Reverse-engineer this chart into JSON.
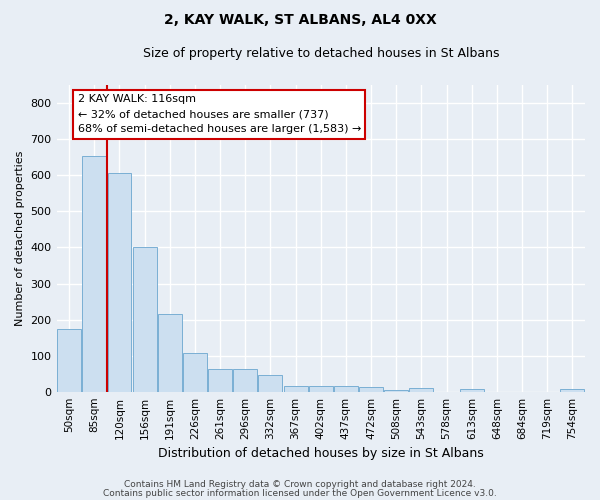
{
  "title1": "2, KAY WALK, ST ALBANS, AL4 0XX",
  "title2": "Size of property relative to detached houses in St Albans",
  "xlabel": "Distribution of detached houses by size in St Albans",
  "ylabel": "Number of detached properties",
  "footer1": "Contains HM Land Registry data © Crown copyright and database right 2024.",
  "footer2": "Contains public sector information licensed under the Open Government Licence v3.0.",
  "bar_color": "#ccdff0",
  "bar_edge_color": "#7aafd4",
  "annotation_box_color": "#cc0000",
  "vline_color": "#cc0000",
  "categories": [
    "50sqm",
    "85sqm",
    "120sqm",
    "156sqm",
    "191sqm",
    "226sqm",
    "261sqm",
    "296sqm",
    "332sqm",
    "367sqm",
    "402sqm",
    "437sqm",
    "472sqm",
    "508sqm",
    "543sqm",
    "578sqm",
    "613sqm",
    "648sqm",
    "684sqm",
    "719sqm",
    "754sqm"
  ],
  "values": [
    175,
    655,
    607,
    400,
    215,
    107,
    64,
    64,
    45,
    17,
    16,
    15,
    13,
    6,
    9,
    0,
    8,
    0,
    0,
    0,
    7
  ],
  "vline_pos": 1.5,
  "annotation_text": "2 KAY WALK: 116sqm\n← 32% of detached houses are smaller (737)\n68% of semi-detached houses are larger (1,583) →",
  "ylim": [
    0,
    850
  ],
  "yticks": [
    0,
    100,
    200,
    300,
    400,
    500,
    600,
    700,
    800
  ],
  "bg_color": "#e8eef5",
  "plot_bg_color": "#e8eef5",
  "grid_color": "#ffffff",
  "title1_fontsize": 10,
  "title2_fontsize": 9,
  "ylabel_fontsize": 8,
  "xlabel_fontsize": 9,
  "footer_fontsize": 6.5,
  "tick_fontsize": 8,
  "xtick_fontsize": 7.5
}
